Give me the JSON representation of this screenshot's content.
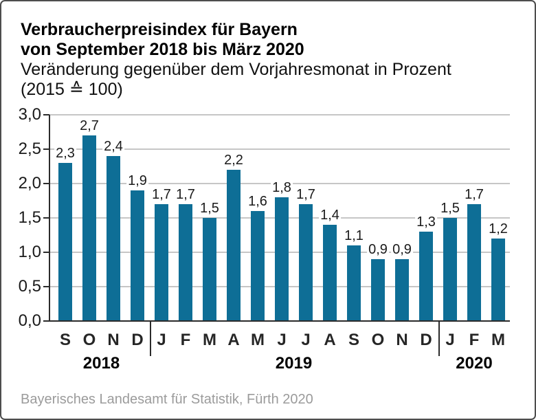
{
  "title": {
    "line1": "Verbraucherpreisindex für Bayern",
    "line2": "von September 2018 bis März 2020",
    "subtitle1": "Veränderung gegenüber dem Vorjahresmonat in Prozent",
    "subtitle2": "(2015 ≙ 100)"
  },
  "source": "Bayerisches Landesamt für Statistik, Fürth 2020",
  "colors": {
    "bar": "#0e6e96",
    "grid": "#c6c6c6",
    "axis": "#2b2b2b",
    "border": "#4d4d4d",
    "muted": "#9b9b9b"
  },
  "chart_data": {
    "type": "bar",
    "title": "Verbraucherpreisindex für Bayern von September 2018 bis März 2020",
    "ylabel": "Veränderung gegenüber dem Vorjahresmonat in Prozent",
    "categories": [
      "S",
      "O",
      "N",
      "D",
      "J",
      "F",
      "M",
      "A",
      "M",
      "J",
      "J",
      "A",
      "S",
      "O",
      "N",
      "D",
      "J",
      "F",
      "M"
    ],
    "values": [
      2.3,
      2.7,
      2.4,
      1.9,
      1.7,
      1.7,
      1.5,
      2.2,
      1.6,
      1.8,
      1.7,
      1.4,
      1.1,
      0.9,
      0.9,
      1.3,
      1.5,
      1.7,
      1.2
    ],
    "value_labels": [
      "2,3",
      "2,7",
      "2,4",
      "1,9",
      "1,7",
      "1,7",
      "1,5",
      "2,2",
      "1,6",
      "1,8",
      "1,7",
      "1,4",
      "1,1",
      "0,9",
      "0,9",
      "1,3",
      "1,5",
      "1,7",
      "1,2"
    ],
    "year_groups": [
      {
        "label": "2018",
        "count": 4
      },
      {
        "label": "2019",
        "count": 12
      },
      {
        "label": "2020",
        "count": 3
      }
    ],
    "ylim": [
      0,
      3
    ],
    "ytick_step": 0.5,
    "ytick_labels": [
      "0,0",
      "0,5",
      "1,0",
      "1,5",
      "2,0",
      "2,5",
      "3,0"
    ],
    "grid": true,
    "legend": "none"
  }
}
